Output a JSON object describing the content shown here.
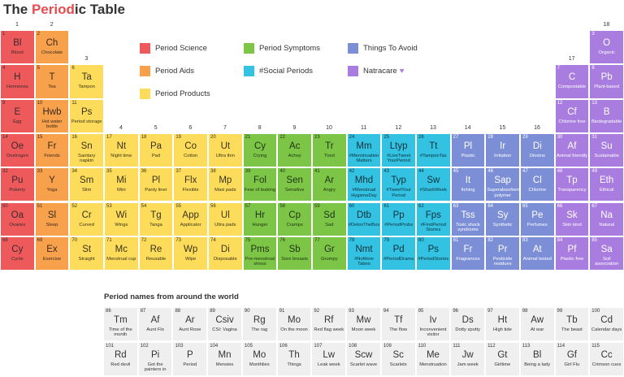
{
  "header": {
    "title": [
      "The ",
      "Period",
      "ic Table"
    ]
  },
  "legend": [
    {
      "name": "Period Science",
      "color": "#ee5a5c",
      "text": "#3a2a2a"
    },
    {
      "name": "Period Aids",
      "color": "#f8a14d",
      "text": "#3a2a1a"
    },
    {
      "name": "Period Products",
      "color": "#fcdc5a",
      "text": "#3a331a"
    },
    {
      "name": "Period Symptoms",
      "color": "#7cc547",
      "text": "#1f3310"
    },
    {
      "name": "#Social Periods",
      "color": "#33c2e2",
      "text": "#10303a"
    },
    {
      "name": "Things To Avoid",
      "color": "#7c8fd6",
      "text": "#ffffff"
    },
    {
      "name": "Natracare",
      "color": "#a97de0",
      "text": "#ffffff"
    }
  ],
  "table": {
    "groups": [
      1,
      2,
      3,
      4,
      5,
      6,
      7,
      8,
      9,
      10,
      11,
      12,
      13,
      14,
      15,
      16,
      17,
      18
    ],
    "rows": [
      {
        "left": [
          {
            "n": 1,
            "s": "Bl",
            "name": "Blood",
            "t": 0
          },
          {
            "n": 2,
            "s": "Ch",
            "name": "Chocolate",
            "t": 1
          }
        ],
        "right": [
          {
            "n": 3,
            "s": "O",
            "name": "Organic",
            "t": 6
          }
        ]
      },
      {
        "left": [
          {
            "n": 4,
            "s": "H",
            "name": "Hormones",
            "t": 0
          },
          {
            "n": 5,
            "s": "T",
            "name": "Tea",
            "t": 1
          },
          {
            "n": 6,
            "s": "Ta",
            "name": "Tampon",
            "t": 2
          }
        ],
        "right": [
          {
            "n": 7,
            "s": "C",
            "name": "Compostable",
            "t": 6
          },
          {
            "n": 8,
            "s": "Pb",
            "name": "Plant-based",
            "t": 6
          }
        ]
      },
      {
        "left": [
          {
            "n": 9,
            "s": "E",
            "name": "Egg",
            "t": 0
          },
          {
            "n": 10,
            "s": "Hwb",
            "name": "Hot water bottle",
            "t": 1
          },
          {
            "n": 11,
            "s": "Ps",
            "name": "Period storage",
            "t": 2
          }
        ],
        "right": [
          {
            "n": 12,
            "s": "Cf",
            "name": "Chlorine free",
            "t": 6
          },
          {
            "n": 13,
            "s": "B",
            "name": "Biodegradable",
            "t": 6
          }
        ]
      },
      {
        "left": [
          {
            "n": 14,
            "s": "Oe",
            "name": "Oestrogen",
            "t": 0
          },
          {
            "n": 15,
            "s": "Fr",
            "name": "Friends",
            "t": 1
          },
          {
            "n": 16,
            "s": "Sn",
            "name": "Sanitary napkin",
            "t": 2
          },
          {
            "n": 17,
            "s": "Nt",
            "name": "Night time",
            "t": 2
          },
          {
            "n": 18,
            "s": "Pa",
            "name": "Pad",
            "t": 2
          },
          {
            "n": 19,
            "s": "Co",
            "name": "Cotton",
            "t": 2
          },
          {
            "n": 20,
            "s": "Ut",
            "name": "Ultra thin",
            "t": 2
          },
          {
            "n": 21,
            "s": "Cy",
            "name": "Crying",
            "t": 3
          },
          {
            "n": 22,
            "s": "Ac",
            "name": "Achey",
            "t": 3
          },
          {
            "n": 23,
            "s": "Tr",
            "name": "Tired",
            "t": 3
          },
          {
            "n": 24,
            "s": "Mm",
            "name": "#Menstruation Matters",
            "t": 4
          },
          {
            "n": 25,
            "s": "Ltyp",
            "name": "#LiveTweet YourPeriod",
            "t": 4
          },
          {
            "n": 26,
            "s": "Tt",
            "name": "#TamponTax",
            "t": 4
          },
          {
            "n": 27,
            "s": "Pl",
            "name": "Plastic",
            "t": 5
          },
          {
            "n": 28,
            "s": "Ir",
            "name": "Irritation",
            "t": 5
          },
          {
            "n": 29,
            "s": "Di",
            "name": "Dioxins",
            "t": 5
          },
          {
            "n": 30,
            "s": "Af",
            "name": "Animal friendly",
            "t": 6
          },
          {
            "n": 31,
            "s": "Su",
            "name": "Sustainable",
            "t": 6
          }
        ]
      },
      {
        "left": [
          {
            "n": 32,
            "s": "Pu",
            "name": "Puberty",
            "t": 0
          },
          {
            "n": 33,
            "s": "Y",
            "name": "Yoga",
            "t": 1
          },
          {
            "n": 34,
            "s": "Sm",
            "name": "Slim",
            "t": 2
          },
          {
            "n": 35,
            "s": "Mi",
            "name": "Mini",
            "t": 2
          },
          {
            "n": 36,
            "s": "Pl",
            "name": "Panty liner",
            "t": 2
          },
          {
            "n": 37,
            "s": "Flx",
            "name": "Flexible",
            "t": 2
          },
          {
            "n": 38,
            "s": "Mp",
            "name": "Maxi pads",
            "t": 2
          },
          {
            "n": 39,
            "s": "Fol",
            "name": "Fear of leaking",
            "t": 3
          },
          {
            "n": 40,
            "s": "Sen",
            "name": "Sensitive",
            "t": 3
          },
          {
            "n": 41,
            "s": "Ar",
            "name": "Angry",
            "t": 3
          },
          {
            "n": 42,
            "s": "Mhd",
            "name": "#Menstrual HygieneDay",
            "t": 4
          },
          {
            "n": 43,
            "s": "Typ",
            "name": "#TweetYour Period",
            "t": 4
          },
          {
            "n": 44,
            "s": "Sw",
            "name": "#SharkWeek",
            "t": 4
          },
          {
            "n": 45,
            "s": "It",
            "name": "Itching",
            "t": 5
          },
          {
            "n": 46,
            "s": "Sap",
            "name": "Superabsorbent polymer",
            "t": 5
          },
          {
            "n": 47,
            "s": "Cl",
            "name": "Chlorine",
            "t": 5
          },
          {
            "n": 48,
            "s": "Tp",
            "name": "Transparency",
            "t": 6
          },
          {
            "n": 49,
            "s": "Eth",
            "name": "Ethical",
            "t": 6
          }
        ]
      },
      {
        "left": [
          {
            "n": 50,
            "s": "Oa",
            "name": "Ovaries",
            "t": 0
          },
          {
            "n": 51,
            "s": "Sl",
            "name": "Sleep",
            "t": 1
          },
          {
            "n": 52,
            "s": "Cr",
            "name": "Curved",
            "t": 2
          },
          {
            "n": 53,
            "s": "Wi",
            "name": "Wings",
            "t": 2
          },
          {
            "n": 54,
            "s": "Tg",
            "name": "Tanga",
            "t": 2
          },
          {
            "n": 55,
            "s": "App",
            "name": "Applicator",
            "t": 2
          },
          {
            "n": 56,
            "s": "Ul",
            "name": "Ultra pads",
            "t": 2
          },
          {
            "n": 57,
            "s": "Hr",
            "name": "Hunger",
            "t": 3
          },
          {
            "n": 58,
            "s": "Cp",
            "name": "Cramps",
            "t": 3
          },
          {
            "n": 59,
            "s": "Sd",
            "name": "Sad",
            "t": 3
          },
          {
            "n": 60,
            "s": "Dtb",
            "name": "#DetoxTheBox",
            "t": 4
          },
          {
            "n": 61,
            "s": "Pp",
            "name": "#PeriodProbs",
            "t": 4
          },
          {
            "n": 62,
            "s": "Fps",
            "name": "#FirstPeriod Stories",
            "t": 4
          },
          {
            "n": 63,
            "s": "Tss",
            "name": "Toxic shock syndrome",
            "t": 5
          },
          {
            "n": 64,
            "s": "Sy",
            "name": "Synthetic",
            "t": 5
          },
          {
            "n": 65,
            "s": "Pe",
            "name": "Perfumes",
            "t": 5
          },
          {
            "n": 66,
            "s": "Sk",
            "name": "Skin kind",
            "t": 6
          },
          {
            "n": 67,
            "s": "Na",
            "name": "Natural",
            "t": 6
          }
        ]
      },
      {
        "left": [
          {
            "n": 68,
            "s": "Cy",
            "name": "Cycle",
            "t": 0
          },
          {
            "n": 69,
            "s": "Ex",
            "name": "Exercise",
            "t": 1
          },
          {
            "n": 70,
            "s": "St",
            "name": "Straight",
            "t": 2
          },
          {
            "n": 71,
            "s": "Mc",
            "name": "Menstrual cup",
            "t": 2
          },
          {
            "n": 72,
            "s": "Re",
            "name": "Reusable",
            "t": 2
          },
          {
            "n": 73,
            "s": "Wp",
            "name": "Wipe",
            "t": 2
          },
          {
            "n": 74,
            "s": "Di",
            "name": "Disposable",
            "t": 2
          },
          {
            "n": 75,
            "s": "Pms",
            "name": "Pre-menstrual stress",
            "t": 3
          },
          {
            "n": 76,
            "s": "Sb",
            "name": "Sore breasts",
            "t": 3
          },
          {
            "n": 77,
            "s": "Gr",
            "name": "Grumpy",
            "t": 3
          },
          {
            "n": 78,
            "s": "Nmt",
            "name": "#NoMore Taboo",
            "t": 4
          },
          {
            "n": 79,
            "s": "Pd",
            "name": "#PeriodDrama",
            "t": 4
          },
          {
            "n": 80,
            "s": "Ps",
            "name": "#PeriodStories",
            "t": 4
          },
          {
            "n": 81,
            "s": "Fr",
            "name": "Fragrances",
            "t": 5
          },
          {
            "n": 82,
            "s": "Pr",
            "name": "Pesticide residues",
            "t": 5
          },
          {
            "n": 83,
            "s": "At",
            "name": "Animal tested",
            "t": 5
          },
          {
            "n": 84,
            "s": "Pf",
            "name": "Plastic free",
            "t": 6
          },
          {
            "n": 85,
            "s": "Sa",
            "name": "Soil association",
            "t": 6
          }
        ]
      }
    ]
  },
  "lower": {
    "title": "Period names from around the world",
    "rows": [
      [
        {
          "n": 86,
          "s": "Tm",
          "name": "Time of the month"
        },
        {
          "n": 87,
          "s": "Af",
          "name": "Aunt Flo"
        },
        {
          "n": 88,
          "s": "Ar",
          "name": "Aunt Rose"
        },
        {
          "n": 89,
          "s": "Csiv",
          "name": "CSI: Vagina"
        },
        {
          "n": 90,
          "s": "Rg",
          "name": "The rag"
        },
        {
          "n": 91,
          "s": "Mo",
          "name": "On the moon"
        },
        {
          "n": 92,
          "s": "Rf",
          "name": "Red flag week"
        },
        {
          "n": 93,
          "s": "Mw",
          "name": "Moon week"
        },
        {
          "n": 94,
          "s": "Tf",
          "name": "The flow"
        },
        {
          "n": 95,
          "s": "Iv",
          "name": "Inconvenient visitor"
        },
        {
          "n": 96,
          "s": "Ds",
          "name": "Dotty spotty"
        },
        {
          "n": 97,
          "s": "Ht",
          "name": "High tide"
        },
        {
          "n": 98,
          "s": "Aw",
          "name": "At war"
        },
        {
          "n": 99,
          "s": "Tb",
          "name": "The beast"
        },
        {
          "n": 100,
          "s": "Cd",
          "name": "Calendar days"
        }
      ],
      [
        {
          "n": 101,
          "s": "Rd",
          "name": "Red devil"
        },
        {
          "n": 102,
          "s": "Pi",
          "name": "Got the painters in"
        },
        {
          "n": 103,
          "s": "P",
          "name": "Period"
        },
        {
          "n": 104,
          "s": "Mn",
          "name": "Mensies"
        },
        {
          "n": 105,
          "s": "Mo",
          "name": "Monthlies"
        },
        {
          "n": 106,
          "s": "Th",
          "name": "Things"
        },
        {
          "n": 107,
          "s": "Lw",
          "name": "Leak week"
        },
        {
          "n": 108,
          "s": "Scw",
          "name": "Scarlet wave"
        },
        {
          "n": 109,
          "s": "Sc",
          "name": "Scarlets"
        },
        {
          "n": 110,
          "s": "Me",
          "name": "Menstruation"
        },
        {
          "n": 111,
          "s": "Jw",
          "name": "Jam week"
        },
        {
          "n": 112,
          "s": "Gt",
          "name": "Girltime"
        },
        {
          "n": 113,
          "s": "Bl",
          "name": "Being a lady"
        },
        {
          "n": 114,
          "s": "Gf",
          "name": "Girl Flu"
        },
        {
          "n": 115,
          "s": "Cc",
          "name": "Crimson cues"
        }
      ]
    ]
  }
}
